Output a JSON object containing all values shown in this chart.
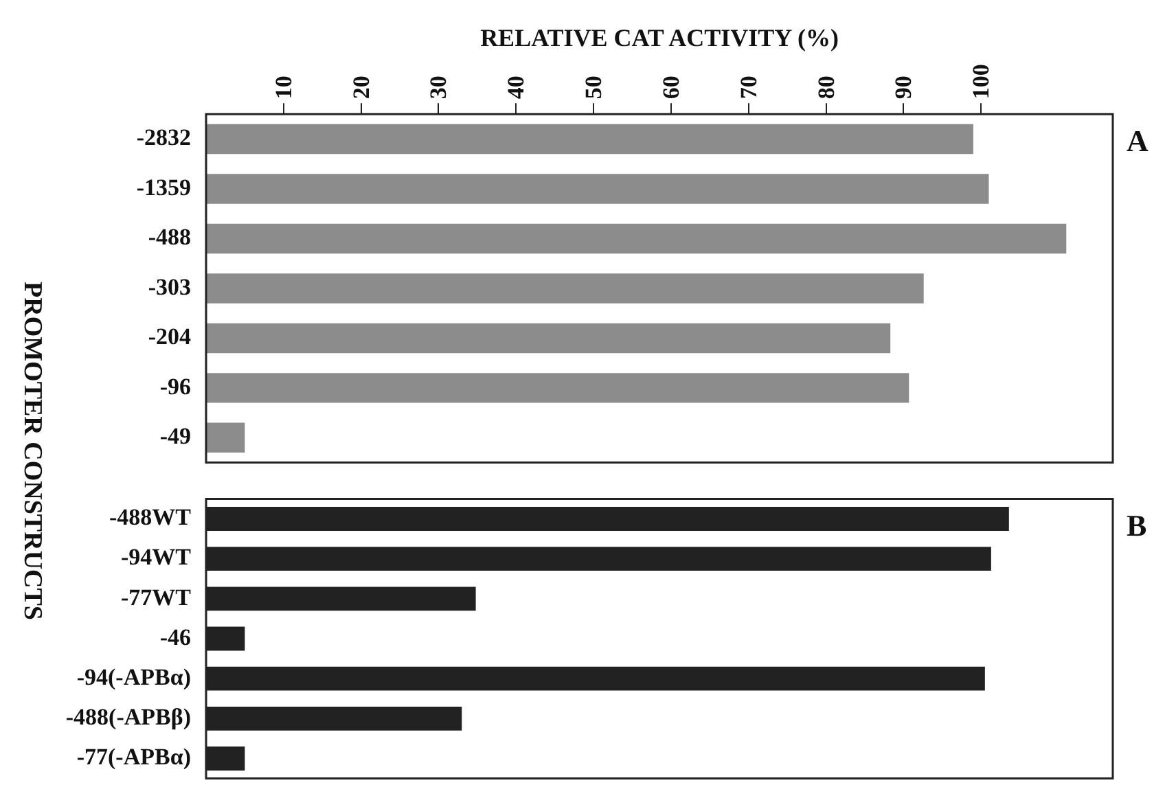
{
  "chart_data": [
    {
      "type": "bar",
      "orientation": "horizontal",
      "xlabel": "RELATIVE CAT ACTIVITY (%)",
      "ylabel": "PROMOTER CONSTRUCTS",
      "categories": [
        "-2832",
        "-1359",
        "-488",
        "-303",
        "-204",
        "-96",
        "-49"
      ],
      "values": [
        99,
        101,
        111,
        92.6,
        88.3,
        90.7,
        5
      ],
      "color": "#8c8c8c",
      "xlim": [
        0,
        117
      ],
      "xticks": [
        10,
        20,
        30,
        40,
        50,
        60,
        70,
        80,
        90,
        100
      ],
      "grid": false,
      "annotations": [
        "A"
      ]
    },
    {
      "type": "bar",
      "orientation": "horizontal",
      "categories": [
        "-488WT",
        "-94WT",
        "-77WT",
        "-46",
        "-94(-APBα)",
        "-488(-APBβ)",
        "-77(-APBα)"
      ],
      "values": [
        103.6,
        101.3,
        34.8,
        5,
        100.5,
        33,
        5
      ],
      "color": "#222222",
      "xlim": [
        0,
        117
      ],
      "tick_labels": "y",
      "grid": false,
      "annotations": [
        "B"
      ]
    }
  ]
}
